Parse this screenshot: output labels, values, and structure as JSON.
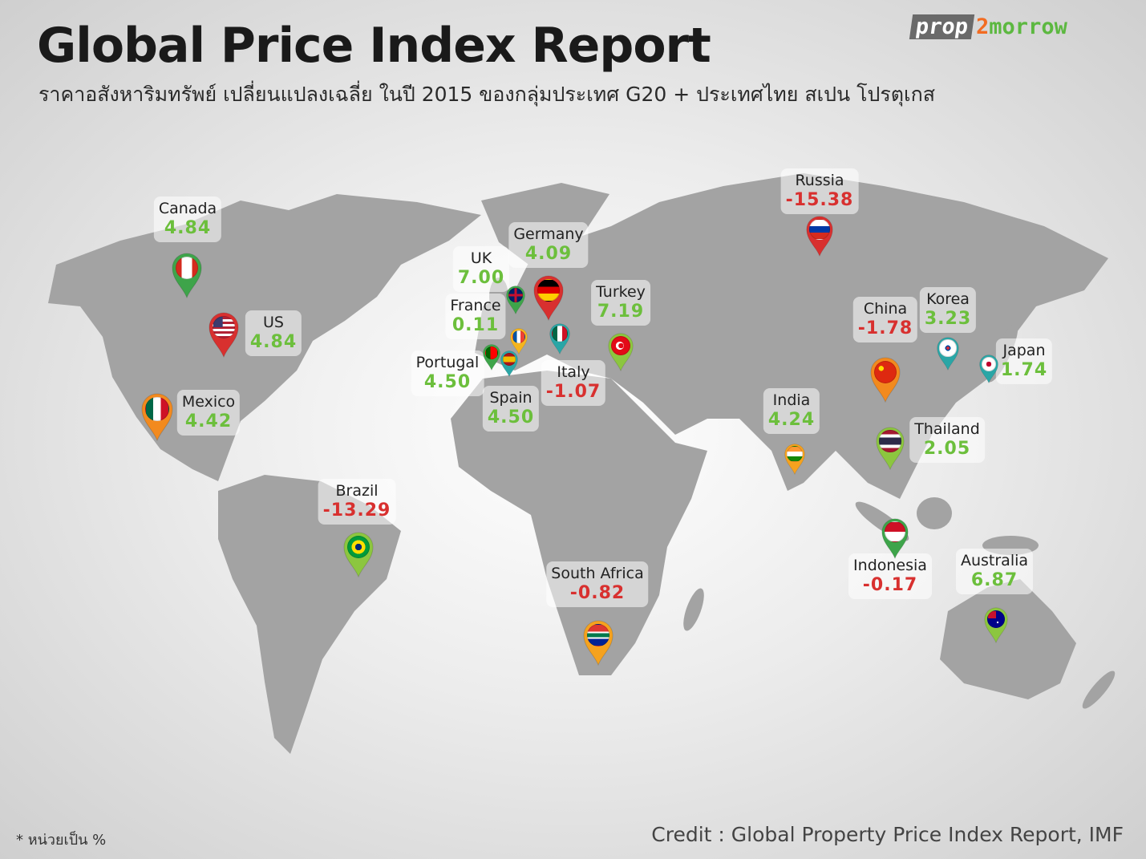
{
  "header": {
    "title": "Global Price Index Report",
    "subtitle": "ราคาอสังหาริมทรัพย์ เปลี่ยนแปลงเฉลี่ย ในปี 2015 ของกลุ่มประเทศ G20 + ประเทศไทย สเปน โปรตุเกส"
  },
  "logo": {
    "part1": "prop",
    "part2": "2",
    "part3": "morrow"
  },
  "colors": {
    "positive": "#6cbf3c",
    "negative": "#d8302f",
    "land": "#a3a3a3"
  },
  "countries": [
    {
      "name": "Canada",
      "value": "4.84",
      "pin_color": "#3ea44a"
    },
    {
      "name": "US",
      "value": "4.84",
      "pin_color": "#d8302f"
    },
    {
      "name": "Mexico",
      "value": "4.42",
      "pin_color": "#f28a1e"
    },
    {
      "name": "Brazil",
      "value": "-13.29",
      "pin_color": "#8cc63f"
    },
    {
      "name": "South Africa",
      "value": "-0.82",
      "pin_color": "#f5a21e"
    },
    {
      "name": "UK",
      "value": "7.00",
      "pin_color": "#3ea44a"
    },
    {
      "name": "Germany",
      "value": "4.09",
      "pin_color": "#d8302f"
    },
    {
      "name": "France",
      "value": "0.11",
      "pin_color": "#f5b51e"
    },
    {
      "name": "Portugal",
      "value": "4.50",
      "pin_color": "#3ea44a"
    },
    {
      "name": "Spain",
      "value": "4.50",
      "pin_color": "#2aa6a6"
    },
    {
      "name": "Italy",
      "value": "-1.07",
      "pin_color": "#2aa6a6"
    },
    {
      "name": "Turkey",
      "value": "7.19",
      "pin_color": "#8cc63f"
    },
    {
      "name": "Russia",
      "value": "-15.38",
      "pin_color": "#d8302f"
    },
    {
      "name": "China",
      "value": "-1.78",
      "pin_color": "#f28a1e"
    },
    {
      "name": "Korea",
      "value": "3.23",
      "pin_color": "#2aa6a6"
    },
    {
      "name": "Japan",
      "value": "1.74",
      "pin_color": "#2aa6a6"
    },
    {
      "name": "India",
      "value": "4.24",
      "pin_color": "#f5a21e"
    },
    {
      "name": "Thailand",
      "value": "2.05",
      "pin_color": "#8cc63f"
    },
    {
      "name": "Indonesia",
      "value": "-0.17",
      "pin_color": "#3ea44a"
    },
    {
      "name": "Australia",
      "value": "6.87",
      "pin_color": "#8cc63f"
    }
  ],
  "footer": {
    "note": "* หน่วยเป็น %",
    "credit": "Credit : Global Property Price Index Report, IMF"
  }
}
